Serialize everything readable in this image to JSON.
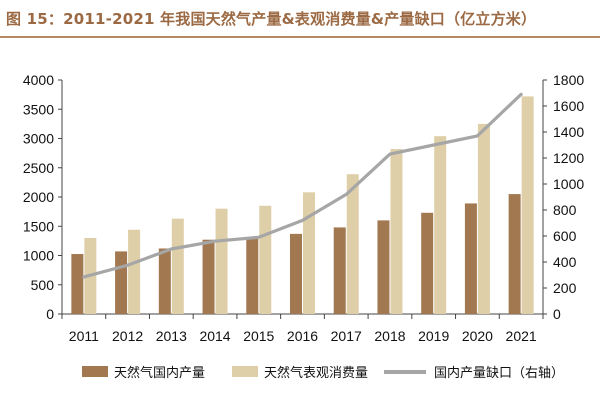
{
  "title": "图 15：2011-2021 年我国天然气产量&表观消费量&产量缺口（亿立方米）",
  "colors": {
    "production": "#a17850",
    "consumption": "#dfcfa8",
    "gap": "#a6a6a6",
    "axis": "#444444",
    "title": "#9b6a44"
  },
  "chart_data": {
    "type": "bar",
    "categories": [
      "2011",
      "2012",
      "2013",
      "2014",
      "2015",
      "2016",
      "2017",
      "2018",
      "2019",
      "2020",
      "2021"
    ],
    "series": [
      {
        "name": "天然气国内产量",
        "type": "bar",
        "axis": "left",
        "values": [
          1025,
          1070,
          1120,
          1270,
          1300,
          1370,
          1480,
          1600,
          1730,
          1890,
          2050
        ]
      },
      {
        "name": "天然气表观消费量",
        "type": "bar",
        "axis": "left",
        "values": [
          1300,
          1440,
          1630,
          1800,
          1850,
          2080,
          2390,
          2820,
          3040,
          3250,
          3720
        ]
      },
      {
        "name": "国内产量缺口（右轴）",
        "type": "line",
        "axis": "right",
        "values": [
          285,
          375,
          500,
          560,
          590,
          720,
          920,
          1230,
          1300,
          1370,
          1690
        ]
      }
    ],
    "y_left": {
      "min": 0,
      "max": 4000,
      "step": 500,
      "ticks": [
        "0",
        "500",
        "1000",
        "1500",
        "2000",
        "2500",
        "3000",
        "3500",
        "4000"
      ]
    },
    "y_right": {
      "min": 0,
      "max": 1800,
      "step": 200,
      "ticks": [
        "0",
        "200",
        "400",
        "600",
        "800",
        "1000",
        "1200",
        "1400",
        "1600",
        "1800"
      ]
    },
    "grid": false,
    "legend_position": "bottom"
  }
}
